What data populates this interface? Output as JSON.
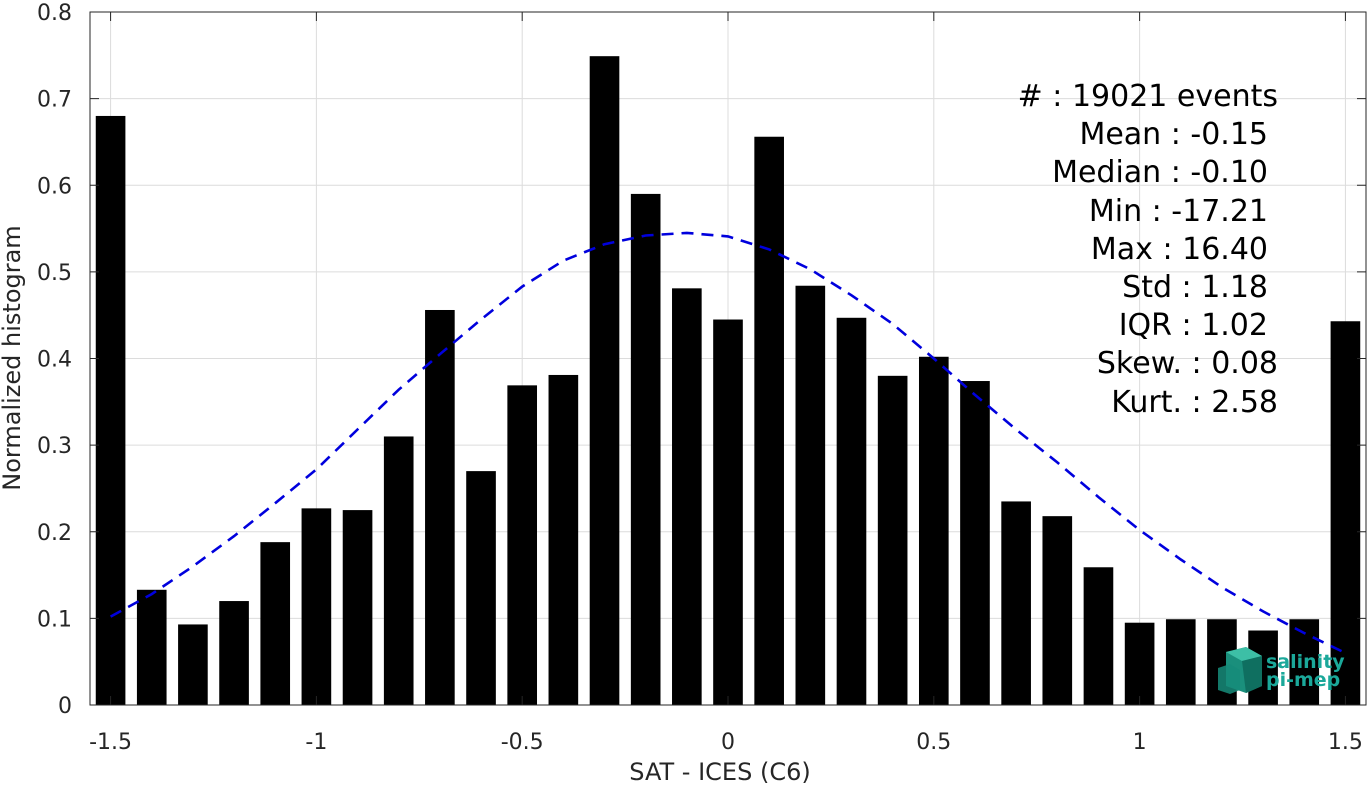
{
  "chart_data": {
    "type": "bar",
    "xlabel": "SAT - ICES (C6)",
    "ylabel": "Normalized histogram",
    "xlim": [
      -1.55,
      1.55
    ],
    "ylim": [
      0,
      0.8
    ],
    "xticks": [
      "-1.5",
      "-1",
      "-0.5",
      "0",
      "0.5",
      "1",
      "1.5"
    ],
    "xtick_values": [
      -1.5,
      -1,
      -0.5,
      0,
      0.5,
      1,
      1.5
    ],
    "yticks": [
      "0",
      "0.1",
      "0.2",
      "0.3",
      "0.4",
      "0.5",
      "0.6",
      "0.7",
      "0.8"
    ],
    "ytick_values": [
      0,
      0.1,
      0.2,
      0.3,
      0.4,
      0.5,
      0.6,
      0.7,
      0.8
    ],
    "grid": true,
    "bar_color": "#000000",
    "x": [
      -1.5,
      -1.4,
      -1.3,
      -1.2,
      -1.1,
      -1.0,
      -0.9,
      -0.8,
      -0.7,
      -0.6,
      -0.5,
      -0.4,
      -0.3,
      -0.2,
      -0.1,
      0.0,
      0.1,
      0.2,
      0.3,
      0.4,
      0.5,
      0.6,
      0.7,
      0.8,
      0.9,
      1.0,
      1.1,
      1.2,
      1.3,
      1.4,
      1.5
    ],
    "values": [
      0.68,
      0.133,
      0.093,
      0.12,
      0.188,
      0.227,
      0.225,
      0.31,
      0.456,
      0.27,
      0.369,
      0.381,
      0.749,
      0.59,
      0.481,
      0.445,
      0.656,
      0.484,
      0.447,
      0.38,
      0.402,
      0.374,
      0.235,
      0.218,
      0.159,
      0.095,
      0.099,
      0.099,
      0.086,
      0.099,
      0.443
    ],
    "fit_curve": {
      "style": "dashed",
      "color": "#0000dd",
      "x": [
        -1.5,
        -1.4,
        -1.3,
        -1.2,
        -1.1,
        -1.0,
        -0.9,
        -0.8,
        -0.7,
        -0.6,
        -0.5,
        -0.4,
        -0.3,
        -0.2,
        -0.1,
        0.0,
        0.1,
        0.2,
        0.3,
        0.4,
        0.5,
        0.6,
        0.7,
        0.8,
        0.9,
        1.0,
        1.1,
        1.2,
        1.3,
        1.4,
        1.5
      ],
      "y": [
        0.102,
        0.128,
        0.16,
        0.195,
        0.233,
        0.272,
        0.318,
        0.364,
        0.405,
        0.445,
        0.483,
        0.513,
        0.532,
        0.542,
        0.545,
        0.541,
        0.526,
        0.503,
        0.473,
        0.44,
        0.4,
        0.358,
        0.318,
        0.28,
        0.24,
        0.202,
        0.168,
        0.136,
        0.108,
        0.083,
        0.06
      ]
    }
  },
  "stats": {
    "count": "#  : 19021 events",
    "mean": "Mean : -0.15",
    "median": "Median : -0.10",
    "min": "Min : -17.21",
    "max": "Max : 16.40",
    "std": "Std : 1.18",
    "iqr": "IQR : 1.02",
    "skew": "Skew. : 0.08",
    "kurt": "Kurt. : 2.58"
  },
  "logo": {
    "line1": "salinity",
    "line2": "pi-mep",
    "color": "#1ba89a"
  }
}
